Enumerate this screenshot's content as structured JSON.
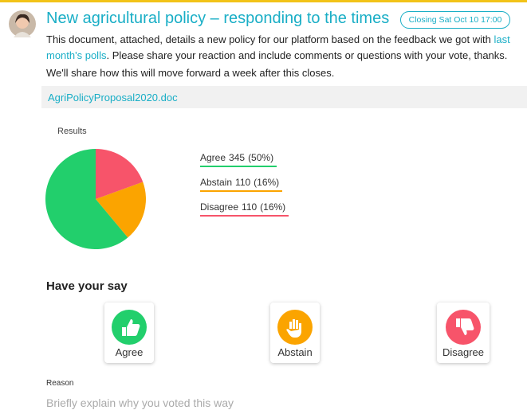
{
  "post": {
    "title": "New agricultural policy – responding to the times",
    "badge": "Closing Sat Oct 10 17:00",
    "body_before": "This document, attached, details a new policy for our platform based on the feedback we got with ",
    "body_link": "last month's polls",
    "body_after": ". Please share your reaction and include comments or questions with your vote, thanks.",
    "note": "We'll share how this will move forward a week after this closes.",
    "attachment": "AgriPolicyProposal2020.doc"
  },
  "results": {
    "title": "Results",
    "type": "pie",
    "options": [
      {
        "name": "Agree",
        "count": 345,
        "share_label": "(50%)",
        "color": "#22cf6c"
      },
      {
        "name": "Abstain",
        "count": 110,
        "share_label": "(16%)",
        "color": "#fba400"
      },
      {
        "name": "Disagree",
        "count": 110,
        "share_label": "(16%)",
        "color": "#f7546a"
      }
    ]
  },
  "vote": {
    "title": "Have your say",
    "buttons": [
      "Agree",
      "Abstain",
      "Disagree"
    ],
    "reason_label": "Reason",
    "reason_placeholder": "Briefly explain why you voted this way"
  }
}
